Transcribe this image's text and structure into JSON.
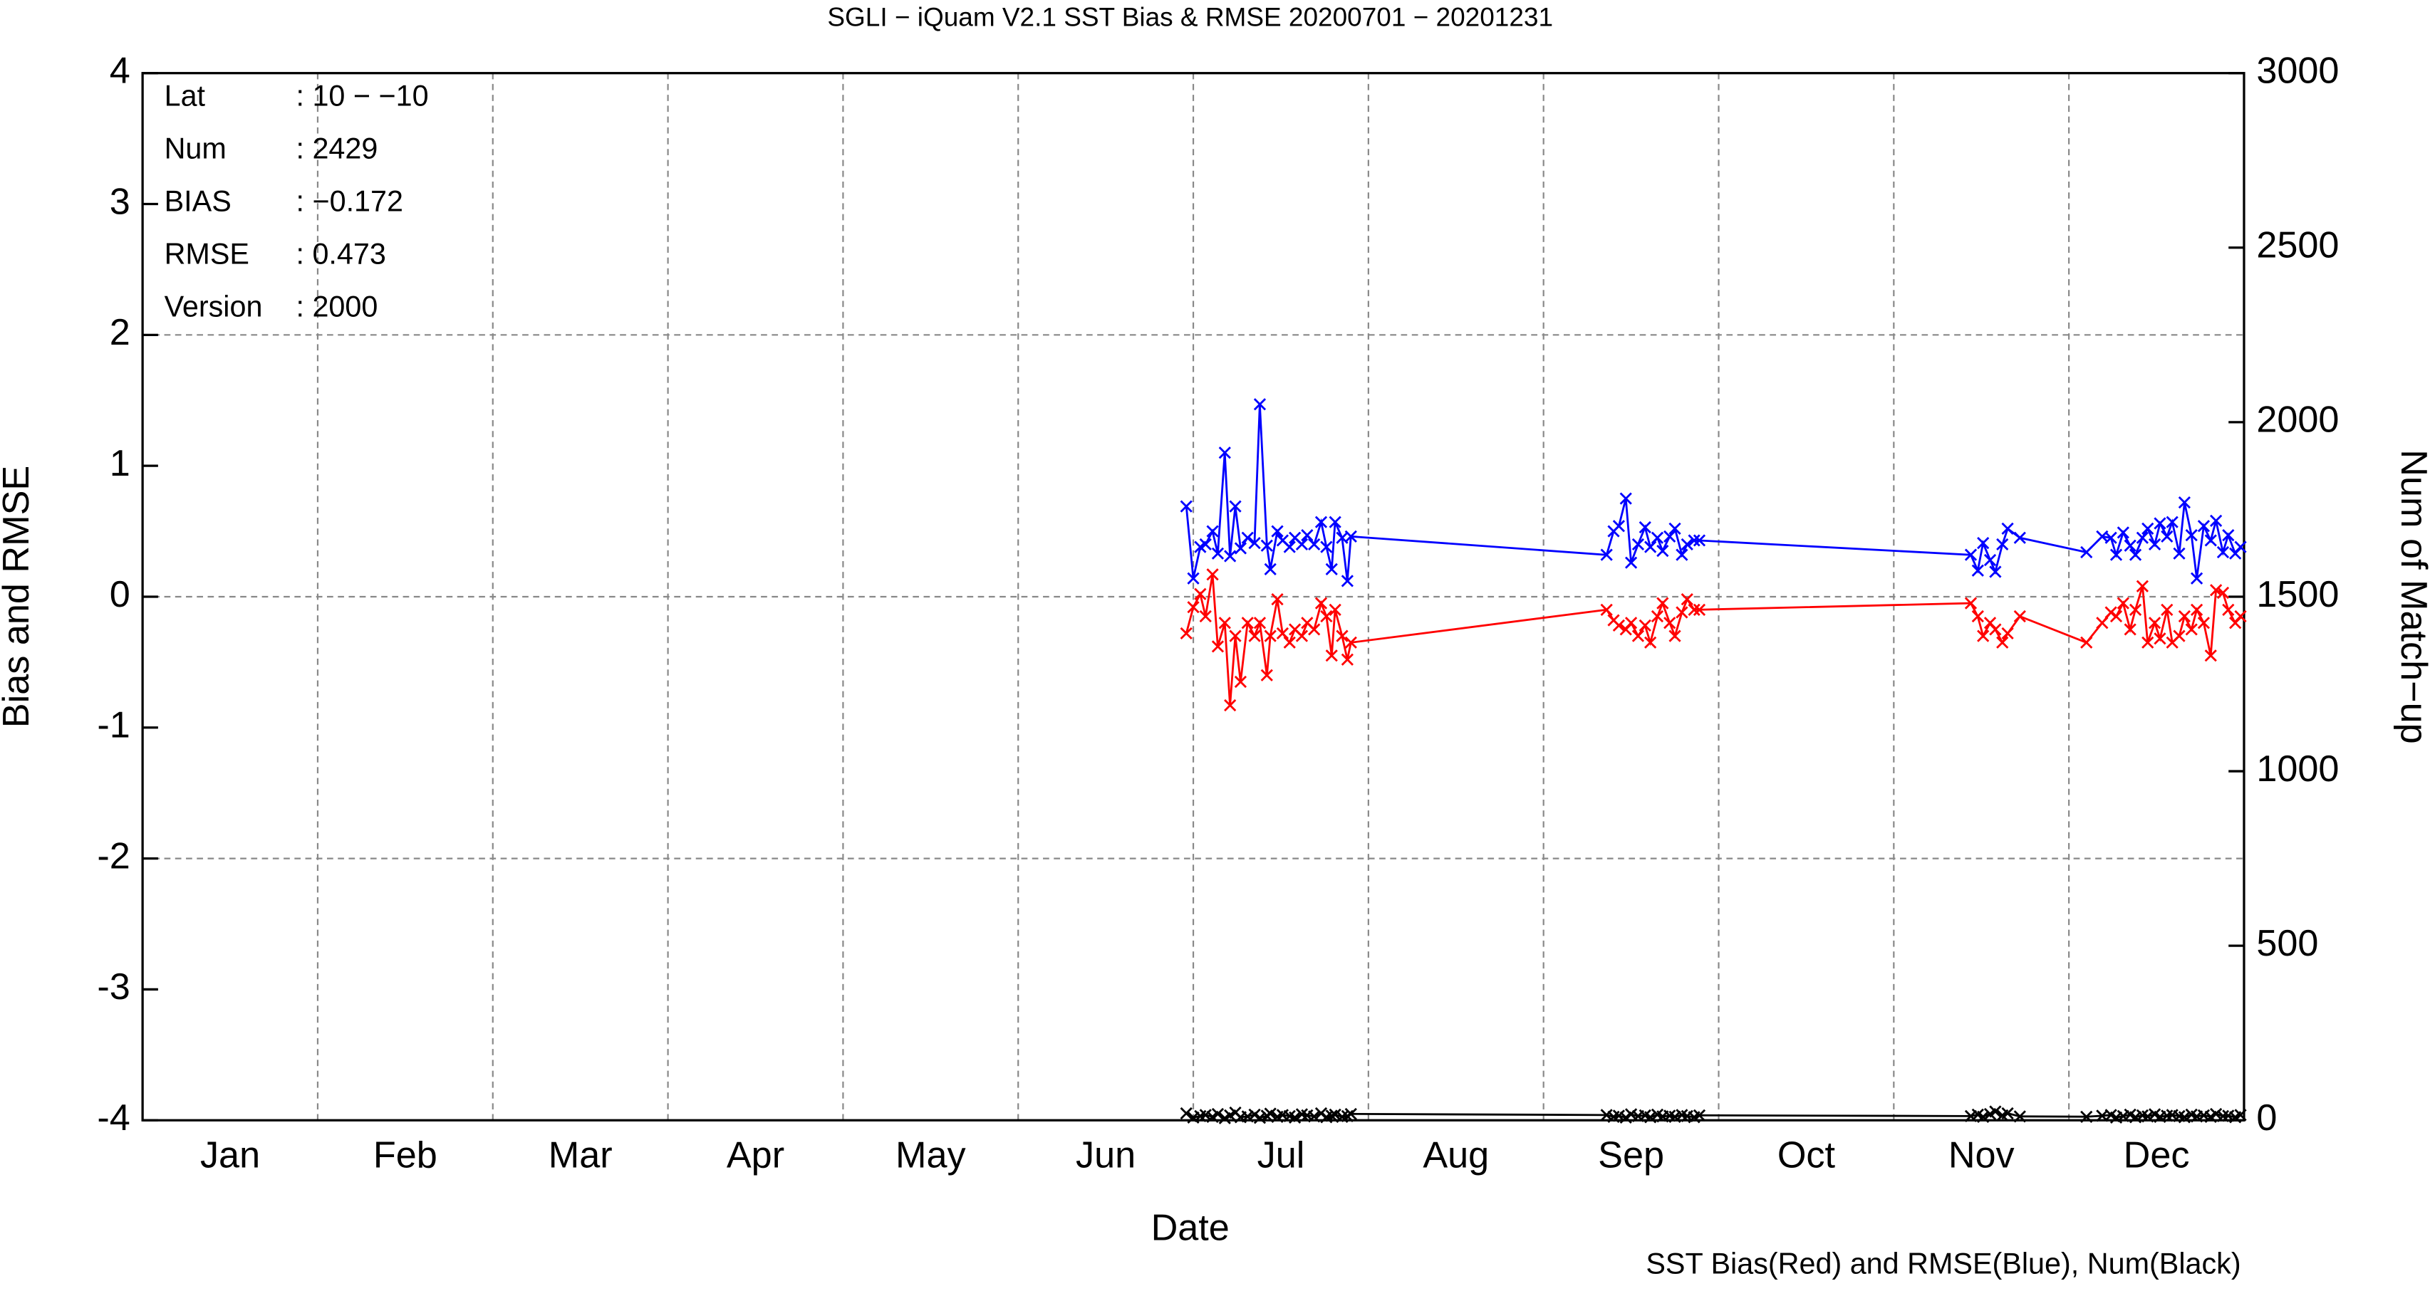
{
  "chart_data": {
    "type": "line",
    "title": "SGLI − iQuam V2.1 SST Bias & RMSE 20200701 − 20201231",
    "x_label": "Date",
    "y_label": "Bias and RMSE",
    "y2_label": "Num of Match−up",
    "footnote": "SST Bias(Red) and RMSE(Blue), Num(Black)",
    "annotations": [
      [
        "Lat",
        ": 10 − −10"
      ],
      [
        "Num",
        ": 2429"
      ],
      [
        "BIAS",
        ": −0.172"
      ],
      [
        "RMSE",
        ": 0.473"
      ],
      [
        "Version",
        ": 2000"
      ]
    ],
    "xlim": [
      0,
      12
    ],
    "xticks": [
      {
        "value": 0.5,
        "label": "Jan"
      },
      {
        "value": 1.5,
        "label": "Feb"
      },
      {
        "value": 2.5,
        "label": "Mar"
      },
      {
        "value": 3.5,
        "label": "Apr"
      },
      {
        "value": 4.5,
        "label": "May"
      },
      {
        "value": 5.5,
        "label": "Jun"
      },
      {
        "value": 6.5,
        "label": "Jul"
      },
      {
        "value": 7.5,
        "label": "Aug"
      },
      {
        "value": 8.5,
        "label": "Sep"
      },
      {
        "value": 9.5,
        "label": "Oct"
      },
      {
        "value": 10.5,
        "label": "Nov"
      },
      {
        "value": 11.5,
        "label": "Dec"
      }
    ],
    "xgrid": [
      1,
      2,
      3,
      4,
      5,
      6,
      7,
      8,
      9,
      10,
      11
    ],
    "ylim": [
      -4,
      4
    ],
    "yticks": [
      -4,
      -3,
      -2,
      -1,
      0,
      1,
      2,
      3,
      4
    ],
    "ygrid": [
      -2,
      0,
      2
    ],
    "y2lim": [
      0,
      3000
    ],
    "y2ticks": [
      0,
      500,
      1000,
      1500,
      2000,
      2500,
      3000
    ],
    "marker": "x",
    "x": [
      5.96,
      6.0,
      6.04,
      6.07,
      6.11,
      6.14,
      6.18,
      6.21,
      6.24,
      6.27,
      6.31,
      6.35,
      6.38,
      6.42,
      6.44,
      6.48,
      6.51,
      6.55,
      6.58,
      6.62,
      6.65,
      6.69,
      6.73,
      6.76,
      6.79,
      6.81,
      6.85,
      6.88,
      6.9,
      8.36,
      8.4,
      8.43,
      8.47,
      8.5,
      8.54,
      8.58,
      8.61,
      8.65,
      8.68,
      8.72,
      8.75,
      8.79,
      8.82,
      8.86,
      8.89,
      10.44,
      10.48,
      10.51,
      10.55,
      10.58,
      10.62,
      10.65,
      10.72,
      11.1,
      11.19,
      11.24,
      11.27,
      11.31,
      11.35,
      11.38,
      11.42,
      11.45,
      11.49,
      11.52,
      11.56,
      11.59,
      11.63,
      11.66,
      11.7,
      11.73,
      11.77,
      11.81,
      11.84,
      11.88,
      11.91,
      11.95,
      11.98
    ],
    "series": [
      {
        "name": "RMSE",
        "color": "#0000ff",
        "values": [
          0.69,
          0.14,
          0.38,
          0.4,
          0.5,
          0.33,
          1.1,
          0.31,
          0.69,
          0.37,
          0.45,
          0.41,
          1.47,
          0.39,
          0.21,
          0.5,
          0.43,
          0.38,
          0.45,
          0.4,
          0.47,
          0.4,
          0.57,
          0.38,
          0.21,
          0.57,
          0.45,
          0.12,
          0.46,
          0.32,
          0.5,
          0.54,
          0.75,
          0.26,
          0.4,
          0.53,
          0.38,
          0.45,
          0.35,
          0.46,
          0.52,
          0.32,
          0.4,
          0.43,
          0.43,
          0.32,
          0.2,
          0.41,
          0.28,
          0.19,
          0.4,
          0.52,
          0.45,
          0.34,
          0.46,
          0.45,
          0.32,
          0.49,
          0.39,
          0.32,
          0.45,
          0.52,
          0.4,
          0.56,
          0.46,
          0.57,
          0.33,
          0.72,
          0.47,
          0.14,
          0.54,
          0.43,
          0.58,
          0.34,
          0.47,
          0.33,
          0.38
        ]
      },
      {
        "name": "Bias",
        "color": "#ff0000",
        "values": [
          -0.28,
          -0.08,
          0.02,
          -0.15,
          0.17,
          -0.38,
          -0.2,
          -0.83,
          -0.3,
          -0.65,
          -0.2,
          -0.3,
          -0.2,
          -0.6,
          -0.3,
          -0.02,
          -0.28,
          -0.35,
          -0.25,
          -0.3,
          -0.2,
          -0.25,
          -0.05,
          -0.15,
          -0.45,
          -0.1,
          -0.3,
          -0.48,
          -0.35,
          -0.1,
          -0.18,
          -0.22,
          -0.25,
          -0.2,
          -0.3,
          -0.22,
          -0.35,
          -0.15,
          -0.05,
          -0.2,
          -0.3,
          -0.12,
          -0.02,
          -0.1,
          -0.1,
          -0.05,
          -0.15,
          -0.3,
          -0.2,
          -0.25,
          -0.35,
          -0.28,
          -0.15,
          -0.35,
          -0.2,
          -0.12,
          -0.15,
          -0.05,
          -0.25,
          -0.1,
          0.08,
          -0.35,
          -0.2,
          -0.32,
          -0.1,
          -0.35,
          -0.3,
          -0.15,
          -0.25,
          -0.1,
          -0.2,
          -0.45,
          0.05,
          0.03,
          -0.1,
          -0.2,
          -0.15
        ]
      },
      {
        "name": "Num",
        "color": "#000000",
        "axis": "y2",
        "values": [
          20,
          8,
          12,
          15,
          10,
          18,
          6,
          14,
          22,
          9,
          11,
          16,
          7,
          13,
          19,
          10,
          15,
          12,
          8,
          17,
          14,
          11,
          20,
          9,
          13,
          16,
          10,
          12,
          18,
          15,
          10,
          13,
          8,
          17,
          12,
          14,
          9,
          16,
          11,
          13,
          10,
          15,
          12,
          9,
          14,
          12,
          16,
          10,
          18,
          25,
          14,
          20,
          11,
          10,
          13,
          15,
          8,
          12,
          16,
          9,
          14,
          11,
          17,
          10,
          13,
          15,
          12,
          9,
          16,
          11,
          14,
          10,
          18,
          12,
          13,
          9,
          15
        ]
      }
    ]
  }
}
